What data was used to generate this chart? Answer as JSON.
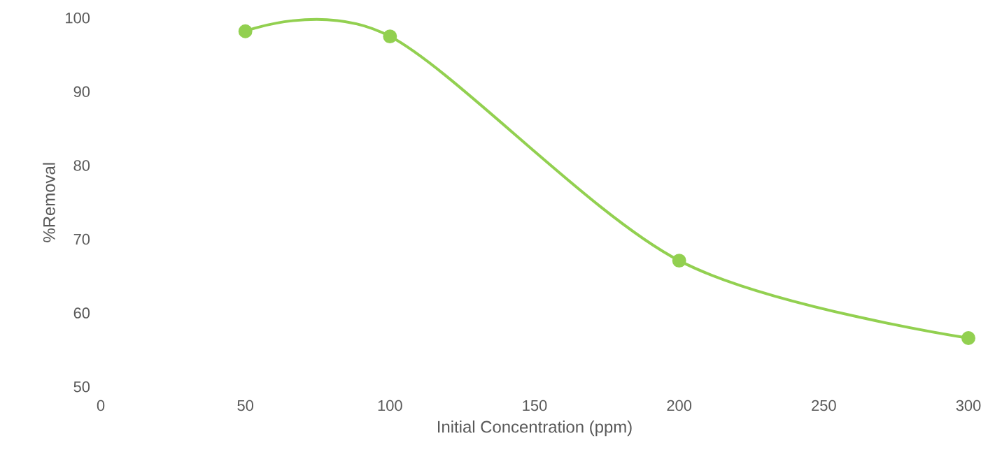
{
  "chart_data": {
    "type": "line",
    "xlabel": "Initial Concentration (ppm)",
    "ylabel": "%Removal",
    "x": [
      50,
      100,
      200,
      300
    ],
    "series": [
      {
        "color": "#92d050",
        "values": [
          98.2,
          97.5,
          67.1,
          56.6
        ]
      }
    ],
    "xlim": [
      0,
      300
    ],
    "xticks": [
      0,
      50,
      100,
      150,
      200,
      250,
      300
    ],
    "ylim": [
      50,
      100
    ],
    "yticks": [
      50,
      60,
      70,
      80,
      90,
      100
    ],
    "grid": false,
    "marker": "circle",
    "line_style": "solid"
  }
}
